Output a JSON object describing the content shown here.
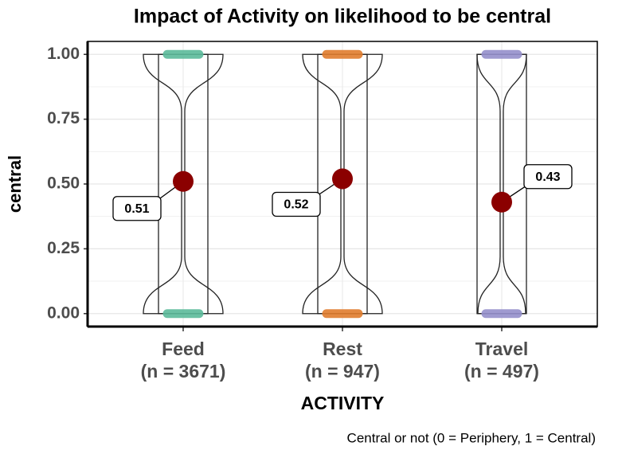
{
  "chart_data": {
    "type": "violin",
    "title": "Impact of Activity on likelihood to be central",
    "x_label": "ACTIVITY",
    "y_label": "central",
    "caption": "Central or not (0 = Periphery, 1 = Central)",
    "categories": [
      "Feed",
      "Rest",
      "Travel"
    ],
    "n_labels": [
      "(n = 3671)",
      "(n = 947)",
      "(n = 497)"
    ],
    "values": [
      0.51,
      0.52,
      0.43
    ],
    "colors": [
      "#5cbb9b",
      "#e07d2e",
      "#9590cc"
    ],
    "mean_color": "#8b0000",
    "ylim": [
      -0.05,
      1.05
    ],
    "yticks": [
      {
        "value": 0,
        "label": "0.00"
      },
      {
        "value": 0.25,
        "label": "0.25"
      },
      {
        "value": 0.5,
        "label": "0.50"
      },
      {
        "value": 0.75,
        "label": "0.75"
      },
      {
        "value": 1,
        "label": "1.00"
      }
    ],
    "grid": true
  }
}
